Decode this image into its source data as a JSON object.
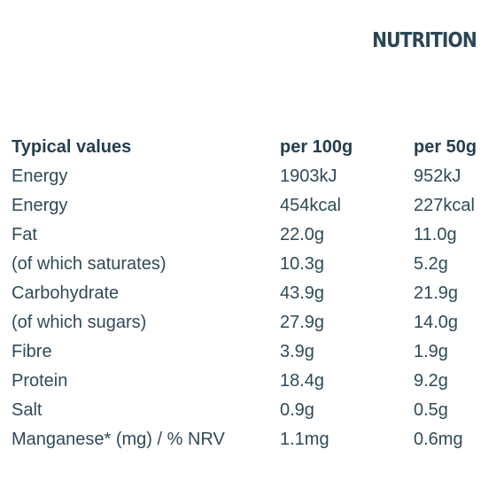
{
  "heading": "NUTRITION",
  "table": {
    "headers": [
      "Typical values",
      "per 100g",
      "per 50g"
    ],
    "rows": [
      [
        "Energy",
        "1903kJ",
        "952kJ"
      ],
      [
        "Energy",
        "454kcal",
        "227kcal"
      ],
      [
        "Fat",
        "22.0g",
        "11.0g"
      ],
      [
        "(of which saturates)",
        "10.3g",
        "5.2g"
      ],
      [
        "Carbohydrate",
        "43.9g",
        "21.9g"
      ],
      [
        "(of which sugars)",
        "27.9g",
        "14.0g"
      ],
      [
        "Fibre",
        "3.9g",
        "1.9g"
      ],
      [
        "Protein",
        "18.4g",
        "9.2g"
      ],
      [
        "Salt",
        "0.9g",
        "0.5g"
      ],
      [
        "Manganese* (mg) / % NRV",
        "1.1mg",
        "0.6mg"
      ]
    ]
  },
  "colors": {
    "text": "#243f4d",
    "background": "#ffffff"
  }
}
